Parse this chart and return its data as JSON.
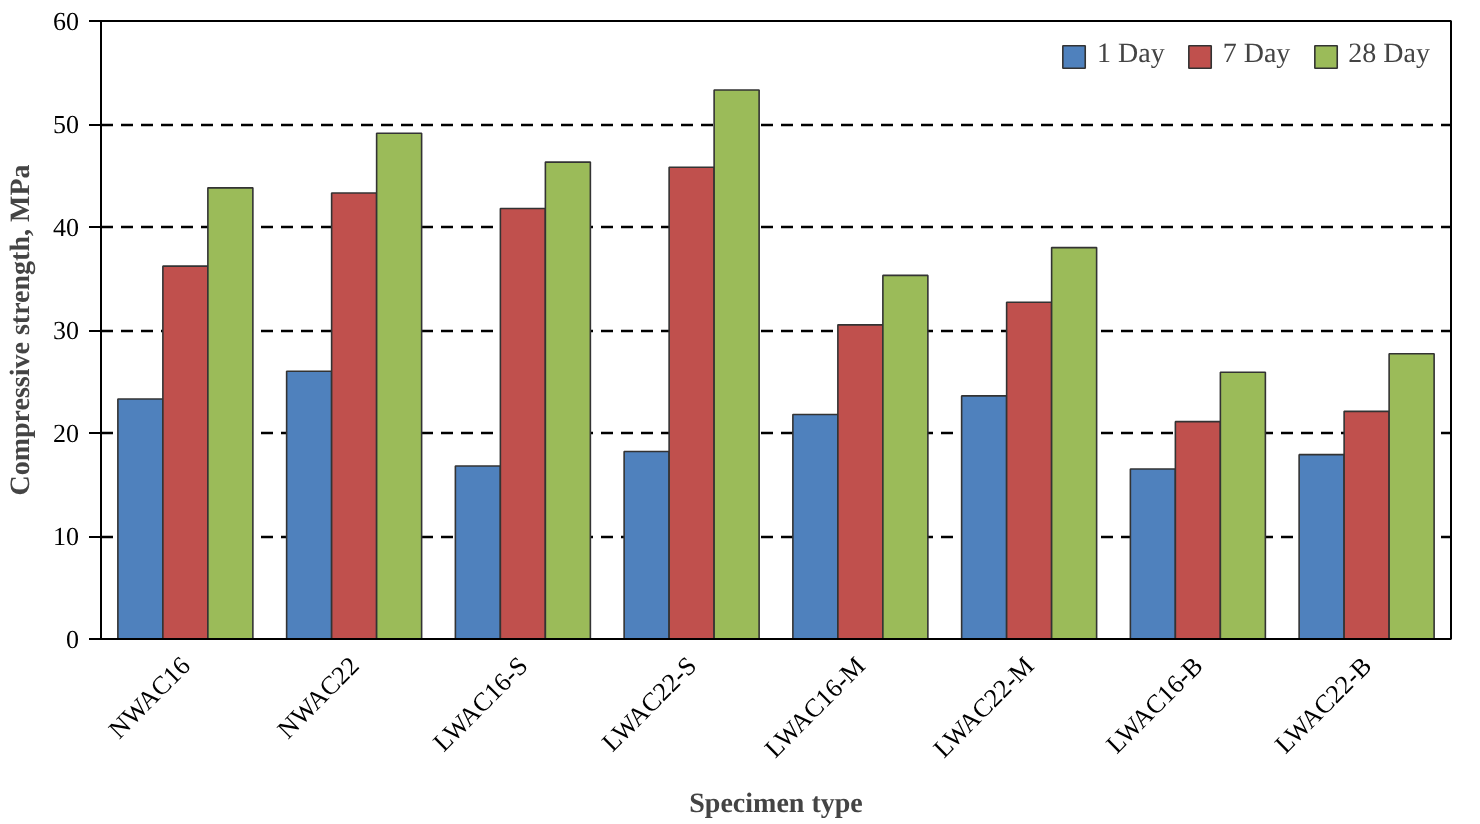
{
  "chart_data": {
    "type": "bar",
    "xlabel": "Specimen type",
    "ylabel": "Compressive strength, MPa",
    "categories": [
      "NWAC16",
      "NWAC22",
      "LWAC16-S",
      "LWAC22-S",
      "LWAC16-M",
      "LWAC22-M",
      "LWAC16-B",
      "LWAC22-B"
    ],
    "series": [
      {
        "name": "1 Day",
        "color": "#4f81bd",
        "values": [
          23.3,
          26.0,
          16.8,
          18.2,
          21.8,
          23.6,
          16.5,
          17.9
        ]
      },
      {
        "name": "7 Day",
        "color": "#c0504d",
        "values": [
          36.2,
          43.3,
          41.8,
          45.8,
          30.5,
          32.7,
          21.1,
          22.1
        ]
      },
      {
        "name": "28 Day",
        "color": "#9bbb59",
        "values": [
          43.8,
          49.1,
          46.3,
          53.3,
          35.3,
          38.0,
          25.9,
          27.7
        ]
      }
    ],
    "ylim": [
      0,
      60
    ],
    "yticks": [
      0,
      10,
      20,
      30,
      40,
      50,
      60
    ],
    "grid": "y",
    "legend": "top right"
  }
}
